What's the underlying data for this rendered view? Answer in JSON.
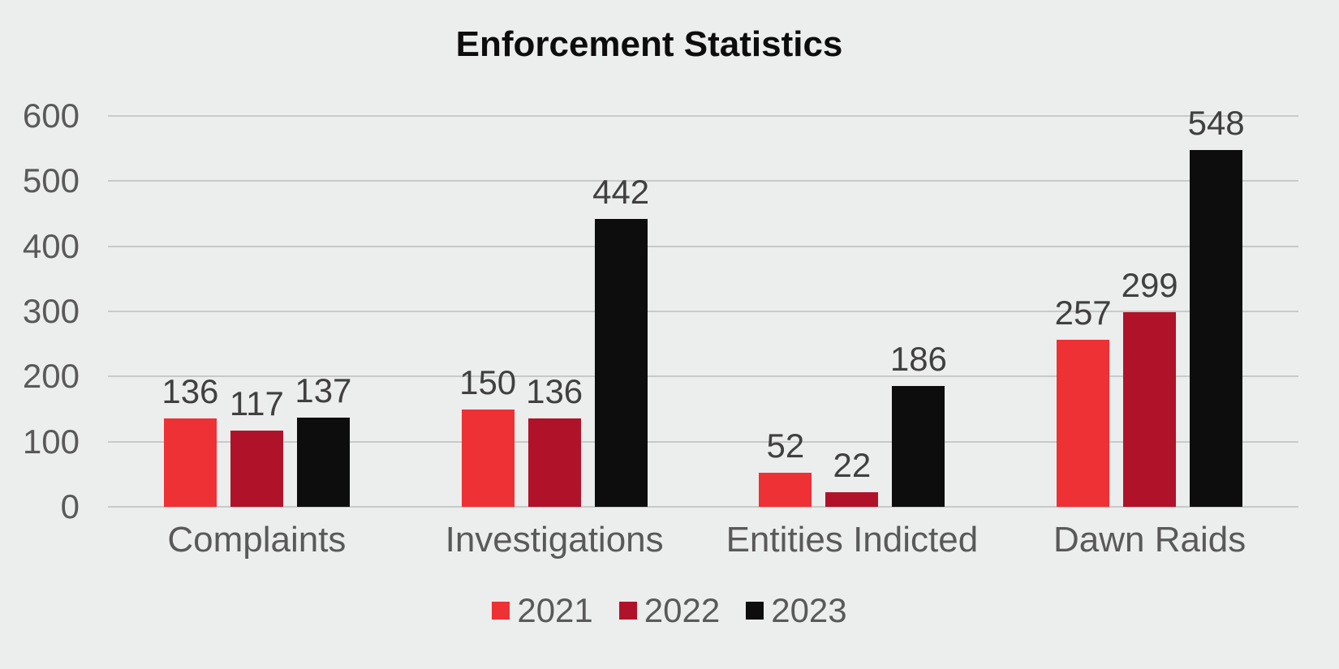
{
  "page": {
    "background": "#ECEDED"
  },
  "chart_data": {
    "type": "bar",
    "title": "Enforcement Statistics",
    "categories": [
      "Complaints",
      "Investigations",
      "Entities Indicted",
      "Dawn Raids"
    ],
    "series": [
      {
        "name": "2021",
        "color": "#EE3134",
        "values": [
          136,
          150,
          52,
          257
        ]
      },
      {
        "name": "2022",
        "color": "#B01329",
        "values": [
          117,
          136,
          22,
          299
        ]
      },
      {
        "name": "2023",
        "color": "#0D0D0D",
        "values": [
          137,
          442,
          186,
          548
        ]
      }
    ],
    "xlabel": "",
    "ylabel": "",
    "ylim": [
      0,
      600
    ],
    "y_step": 100,
    "y_tick_labels": [
      "0",
      "100",
      "200",
      "300",
      "400",
      "500",
      "600"
    ],
    "grid": true,
    "gridline_color": "#C8CACA",
    "axis_text_color": "#595959",
    "data_label_color": "#404040",
    "data_labels": true,
    "legend_position": "bottom"
  }
}
